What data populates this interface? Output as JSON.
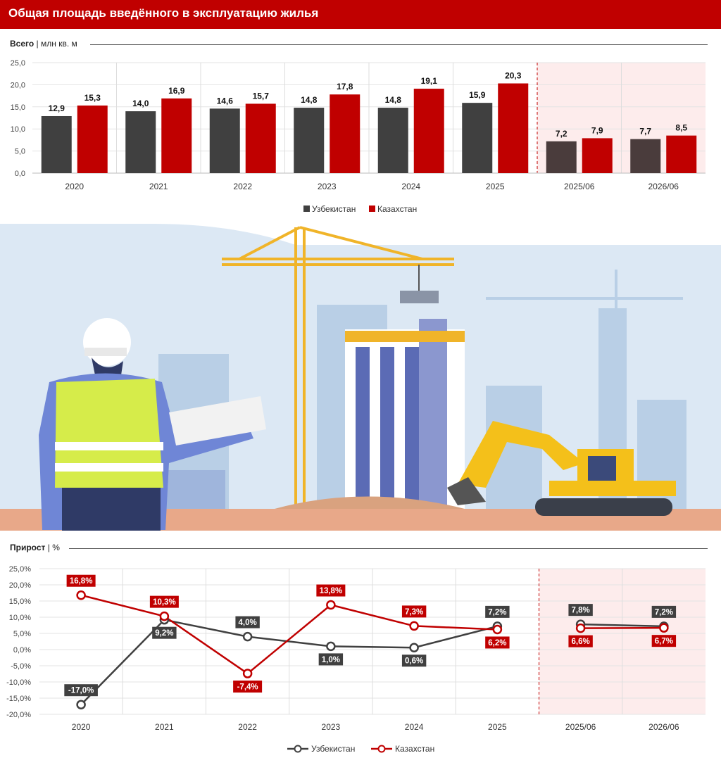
{
  "title": "Общая площадь введённого в эксплуатацию жилья",
  "colors": {
    "uz": "#404040",
    "kz": "#c00000",
    "uz_forecast": "#4a3c3c",
    "accent": "#c00000",
    "forecast_bg": "#fdecec"
  },
  "top_section": {
    "label_bold": "Всего",
    "sep": "|",
    "label_unit": "млн кв. м"
  },
  "bottom_section": {
    "label_bold": "Прирост",
    "sep": "|",
    "label_unit": "%"
  },
  "chart_data": [
    {
      "type": "bar",
      "categories": [
        "2020",
        "2021",
        "2022",
        "2023",
        "2024",
        "2025",
        "2025/06",
        "2026/06"
      ],
      "ylim": [
        0,
        25
      ],
      "yticks": [
        "25,0",
        "20,0",
        "15,0",
        "10,0",
        "5,0",
        "0,0"
      ],
      "ytick_values": [
        25,
        20,
        15,
        10,
        5,
        0
      ],
      "forecast_from_index": 6,
      "series": [
        {
          "name": "Узбекистан",
          "values": [
            12.9,
            14.0,
            14.6,
            14.8,
            14.8,
            15.9,
            7.2,
            7.7
          ],
          "labels": [
            "12,9",
            "14,0",
            "14,6",
            "14,8",
            "14,8",
            "15,9",
            "7,2",
            "7,7"
          ]
        },
        {
          "name": "Казахстан",
          "values": [
            15.3,
            16.9,
            15.7,
            17.8,
            19.1,
            20.3,
            7.9,
            8.5
          ],
          "labels": [
            "15,3",
            "16,9",
            "15,7",
            "17,8",
            "19,1",
            "20,3",
            "7,9",
            "8,5"
          ]
        }
      ],
      "legend": "bottom-center",
      "grid": true
    },
    {
      "type": "line",
      "categories": [
        "2020",
        "2021",
        "2022",
        "2023",
        "2024",
        "2025",
        "2025/06",
        "2026/06"
      ],
      "ylim": [
        -20,
        25
      ],
      "yticks": [
        "25,0%",
        "20,0%",
        "15,0%",
        "10,0%",
        "5,0%",
        "0,0%",
        "-5,0%",
        "-10,0%",
        "-15,0%",
        "-20,0%"
      ],
      "ytick_values": [
        25,
        20,
        15,
        10,
        5,
        0,
        -5,
        -10,
        -15,
        -20
      ],
      "forecast_from_index": 6,
      "series": [
        {
          "name": "Узбекистан",
          "values": [
            -17.0,
            9.2,
            4.0,
            1.0,
            0.6,
            7.2,
            7.8,
            7.2
          ],
          "labels": [
            "-17,0%",
            "9,2%",
            "4,0%",
            "1,0%",
            "0,6%",
            "7,2%",
            "7,8%",
            "7,2%"
          ]
        },
        {
          "name": "Казахстан",
          "values": [
            16.8,
            10.3,
            -7.4,
            13.8,
            7.3,
            6.2,
            6.6,
            6.7
          ],
          "labels": [
            "16,8%",
            "10,3%",
            "-7,4%",
            "13,8%",
            "7,3%",
            "6,2%",
            "6,6%",
            "6,7%"
          ]
        }
      ],
      "legend": "bottom-center",
      "grid": true
    }
  ]
}
